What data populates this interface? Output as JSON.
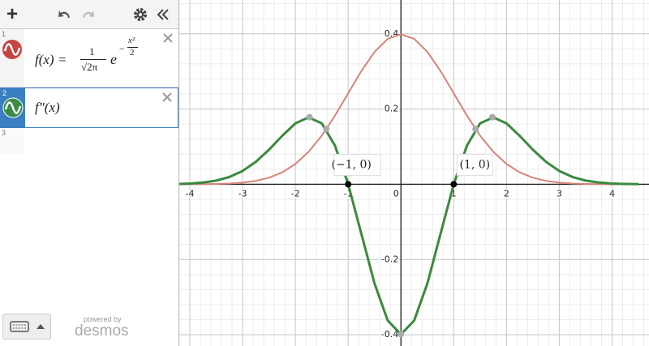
{
  "toolbar": {
    "add": "+"
  },
  "expressions": [
    {
      "index": "1",
      "lhs": "f(x) =",
      "num": "1",
      "den": "√2π",
      "base": "e",
      "exp_sign": "−",
      "exp_num": "x²",
      "exp_den": "2"
    },
    {
      "index": "2",
      "text": "f″(x)"
    },
    {
      "index": "3"
    }
  ],
  "footer": {
    "powered": "powered by",
    "brand": "desmos"
  },
  "chart_data": {
    "type": "line",
    "x": [
      -4.5,
      -4.25,
      -4,
      -3.75,
      -3.5,
      -3.25,
      -3,
      -2.75,
      -2.5,
      -2.25,
      -2,
      -1.75,
      -1.5,
      -1.25,
      -1,
      -0.75,
      -0.5,
      -0.25,
      0,
      0.25,
      0.5,
      0.75,
      1,
      1.25,
      1.5,
      1.75,
      2,
      2.25,
      2.5,
      2.75,
      3,
      3.25,
      3.5,
      3.75,
      4,
      4.25,
      4.5
    ],
    "series": [
      {
        "color": "#d5857a",
        "values": [
          0,
          0,
          0.0001,
          0.0004,
          0.0009,
          0.002,
          0.0044,
          0.0091,
          0.0175,
          0.0317,
          0.054,
          0.0863,
          0.1295,
          0.1826,
          0.242,
          0.3011,
          0.3521,
          0.3867,
          0.3989,
          0.3867,
          0.3521,
          0.3011,
          0.242,
          0.1826,
          0.1295,
          0.0863,
          0.054,
          0.0317,
          0.0175,
          0.0091,
          0.0044,
          0.002,
          0.0009,
          0.0004,
          0.0001,
          0,
          0
        ]
      },
      {
        "color": "#3a8a3e",
        "values": [
          0.0003,
          0.0008,
          0.002,
          0.0046,
          0.0098,
          0.0194,
          0.0355,
          0.0597,
          0.0919,
          0.1288,
          0.162,
          0.178,
          0.1619,
          0.1027,
          0,
          -0.1317,
          -0.2641,
          -0.3625,
          -0.3989,
          -0.3625,
          -0.2641,
          -0.1317,
          0,
          0.1027,
          0.1619,
          0.178,
          0.162,
          0.1288,
          0.0919,
          0.0597,
          0.0355,
          0.0194,
          0.0098,
          0.0046,
          0.002,
          0.0008,
          0.0003
        ]
      }
    ],
    "points": [
      {
        "x": -1.732,
        "y": 0.1784,
        "color": "#aaaaaa"
      },
      {
        "x": 1.732,
        "y": 0.1784,
        "color": "#aaaaaa"
      },
      {
        "x": -1.414,
        "y": 0.1468,
        "color": "#aaaaaa"
      },
      {
        "x": 1.414,
        "y": 0.1468,
        "color": "#aaaaaa"
      },
      {
        "x": 0,
        "y": -0.3989,
        "color": "#aaaaaa"
      },
      {
        "x": -1,
        "y": 0,
        "color": "#000000",
        "label": "(−1, 0)"
      },
      {
        "x": 1,
        "y": 0,
        "color": "#000000",
        "label": "(1, 0)"
      }
    ],
    "xlim": [
      -4.2,
      4.7
    ],
    "ylim": [
      -0.43,
      0.49
    ],
    "xticks": [
      -4,
      -3,
      -2,
      -1,
      0,
      1,
      2,
      3,
      4
    ],
    "yticks": [
      -0.4,
      -0.2,
      0.2,
      0.4
    ],
    "grid": true
  }
}
